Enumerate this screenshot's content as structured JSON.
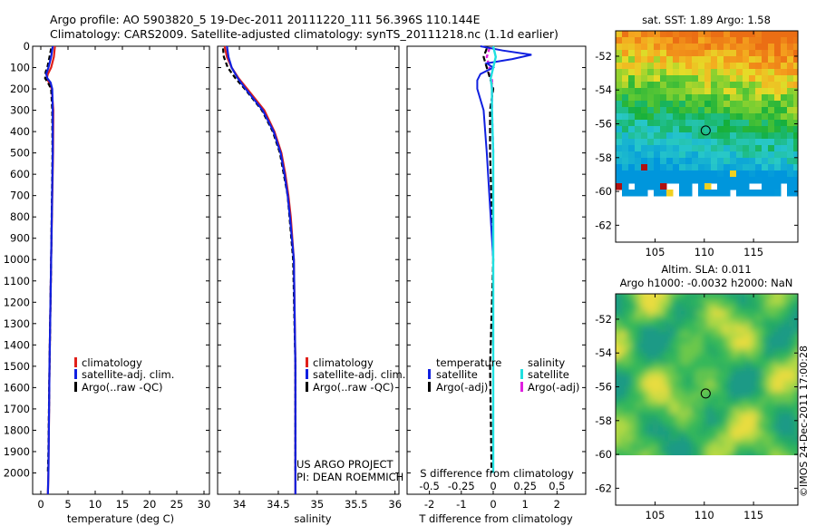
{
  "title_line1": "Argo profile: AO 5903820_5 19-Dec-2011 20111220_111 56.396S 110.144E",
  "title_line2": "Climatology: CARS2009. Satellite-adjusted climatology: synTS_20111218.nc (1.1d earlier)",
  "project_line1": "US ARGO PROJECT",
  "project_line2": "PI: DEAN ROEMMICH",
  "credit": "©IMOS 24-Dec-2011 17:00:28",
  "colors": {
    "climatology": "#e0201a",
    "satellite": "#1020e0",
    "argo": "#000000",
    "sat_salinity": "#20e0e0",
    "argo_salinity": "#e020e0"
  },
  "chart_data": [
    {
      "type": "line",
      "xlabel": "temperature (deg C)",
      "ylabel": "",
      "ylim": [
        2100,
        0
      ],
      "xlim": [
        -1.5,
        31
      ],
      "xticks": [
        "0",
        "5",
        "10",
        "15",
        "20",
        "25",
        "30"
      ],
      "yticks": [
        "0",
        "100",
        "200",
        "300",
        "400",
        "500",
        "600",
        "700",
        "800",
        "900",
        "1000",
        "1100",
        "1200",
        "1300",
        "1400",
        "1500",
        "1600",
        "1700",
        "1800",
        "1900",
        "2000"
      ],
      "legend": [
        "climatology",
        "satellite-adj. clim.",
        "Argo(..raw -QC)"
      ],
      "series": [
        {
          "name": "climatology",
          "depth": [
            0,
            50,
            100,
            130,
            150,
            170,
            200,
            300,
            500,
            1000,
            1500,
            2000,
            2100
          ],
          "values": [
            2.6,
            2.4,
            1.9,
            1.3,
            1.1,
            1.5,
            2.0,
            2.3,
            2.25,
            1.9,
            1.6,
            1.4,
            1.3
          ]
        },
        {
          "name": "satellite-adj. clim.",
          "depth": [
            0,
            50,
            100,
            130,
            150,
            170,
            200,
            300,
            500,
            1000,
            1500,
            2000,
            2100
          ],
          "values": [
            2.2,
            1.9,
            1.4,
            1.0,
            1.2,
            1.8,
            2.1,
            2.2,
            2.2,
            1.9,
            1.6,
            1.4,
            1.3
          ]
        },
        {
          "name": "Argo(..raw -QC)",
          "depth": [
            10,
            50,
            100,
            120,
            150,
            170,
            200,
            300,
            500,
            1000,
            1500,
            1900,
            2000
          ],
          "values": [
            1.9,
            1.6,
            1.2,
            0.9,
            0.8,
            1.3,
            1.9,
            2.1,
            2.15,
            1.9,
            1.6,
            1.4,
            1.3
          ]
        }
      ]
    },
    {
      "type": "line",
      "xlabel": "salinity",
      "ylim": [
        2100,
        0
      ],
      "xlim": [
        33.72,
        36.05
      ],
      "xticks": [
        "34",
        "34.5",
        "35",
        "35.5",
        "36"
      ],
      "legend": [
        "climatology",
        "satellite-adj. clim.",
        "Argo(..raw -QC)"
      ],
      "series": [
        {
          "name": "climatology",
          "depth": [
            0,
            50,
            100,
            150,
            200,
            300,
            400,
            500,
            600,
            700,
            800,
            1000,
            1500,
            2000,
            2100
          ],
          "values": [
            33.81,
            33.84,
            33.9,
            33.99,
            34.1,
            34.32,
            34.45,
            34.54,
            34.59,
            34.63,
            34.66,
            34.7,
            34.72,
            34.72,
            34.72
          ]
        },
        {
          "name": "satellite-adj. clim.",
          "depth": [
            0,
            50,
            100,
            150,
            200,
            300,
            400,
            500,
            600,
            700,
            800,
            1000,
            1500,
            2000,
            2100
          ],
          "values": [
            33.84,
            33.86,
            33.9,
            33.98,
            34.08,
            34.3,
            34.44,
            34.53,
            34.58,
            34.62,
            34.65,
            34.7,
            34.72,
            34.72,
            34.72
          ]
        },
        {
          "name": "Argo(..raw -QC)",
          "depth": [
            10,
            50,
            100,
            150,
            200,
            300,
            400,
            500,
            700,
            1000,
            1500,
            2000
          ],
          "values": [
            33.79,
            33.8,
            33.85,
            33.95,
            34.07,
            34.29,
            34.43,
            34.52,
            34.62,
            34.69,
            34.72,
            34.72
          ]
        }
      ]
    },
    {
      "type": "line",
      "xlabel": "T difference from climatology",
      "xlabel_top": "S difference from climatology",
      "ylim": [
        2100,
        0
      ],
      "xlim": [
        -2.7,
        2.9
      ],
      "xticks": [
        "-2",
        "-1",
        "0",
        "1",
        "2"
      ],
      "xticks_top": [
        "-0.5",
        "-0.25",
        "0",
        "0.25",
        "0.5"
      ],
      "legend_headers": [
        "temperature",
        "salinity"
      ],
      "legend": [
        "satellite",
        "Argo(-adj)",
        "satellite",
        "Argo(-adj)"
      ],
      "series": [
        {
          "name": "temperature satellite",
          "depth": [
            0,
            20,
            40,
            60,
            80,
            100,
            130,
            160,
            200,
            300,
            500,
            1000,
            2000
          ],
          "values": [
            -0.4,
            0.3,
            1.2,
            0.6,
            -0.2,
            0.0,
            -0.4,
            -0.5,
            -0.5,
            -0.3,
            -0.2,
            0.0,
            0.0
          ]
        },
        {
          "name": "temperature Argo(-adj)",
          "depth": [
            10,
            50,
            100,
            150,
            200,
            300,
            500,
            1000,
            1500,
            2000
          ],
          "values": [
            -0.2,
            -0.3,
            -0.2,
            -0.1,
            0.0,
            -0.1,
            -0.1,
            0.0,
            -0.1,
            -0.05
          ]
        },
        {
          "name": "salinity satellite",
          "depth": [
            0,
            50,
            100,
            150,
            200,
            300,
            500,
            1000,
            1500,
            2000
          ],
          "values": [
            0.0,
            0.02,
            0.0,
            -0.02,
            -0.01,
            -0.01,
            0.0,
            0.0,
            0.0,
            0.0
          ]
        },
        {
          "name": "salinity Argo(-adj)",
          "depth": [
            10,
            50,
            100,
            150,
            200,
            300,
            500
          ],
          "values": [
            -0.03,
            -0.05,
            -0.03,
            -0.01,
            -0.01,
            -0.01,
            0.0
          ]
        }
      ]
    },
    {
      "type": "heatmap",
      "title": "sat. SST: 1.89 Argo: 1.58",
      "xlim": [
        101,
        119.5
      ],
      "ylim": [
        -63,
        -50.5
      ],
      "xticks": [
        "105",
        "110",
        "115"
      ],
      "yticks": [
        "-52",
        "-54",
        "-56",
        "-58",
        "-60",
        "-62"
      ],
      "marker": {
        "lon": 110.144,
        "lat": -56.396
      }
    },
    {
      "type": "heatmap",
      "title": "Altim. SLA: 0.011",
      "subtitle": "Argo h1000: -0.0032 h2000: NaN",
      "xlim": [
        101,
        119.5
      ],
      "ylim": [
        -63,
        -50.5
      ],
      "xticks": [
        "105",
        "110",
        "115"
      ],
      "yticks": [
        "-52",
        "-54",
        "-56",
        "-58",
        "-60",
        "-62"
      ],
      "marker": {
        "lon": 110.144,
        "lat": -56.396
      }
    }
  ]
}
